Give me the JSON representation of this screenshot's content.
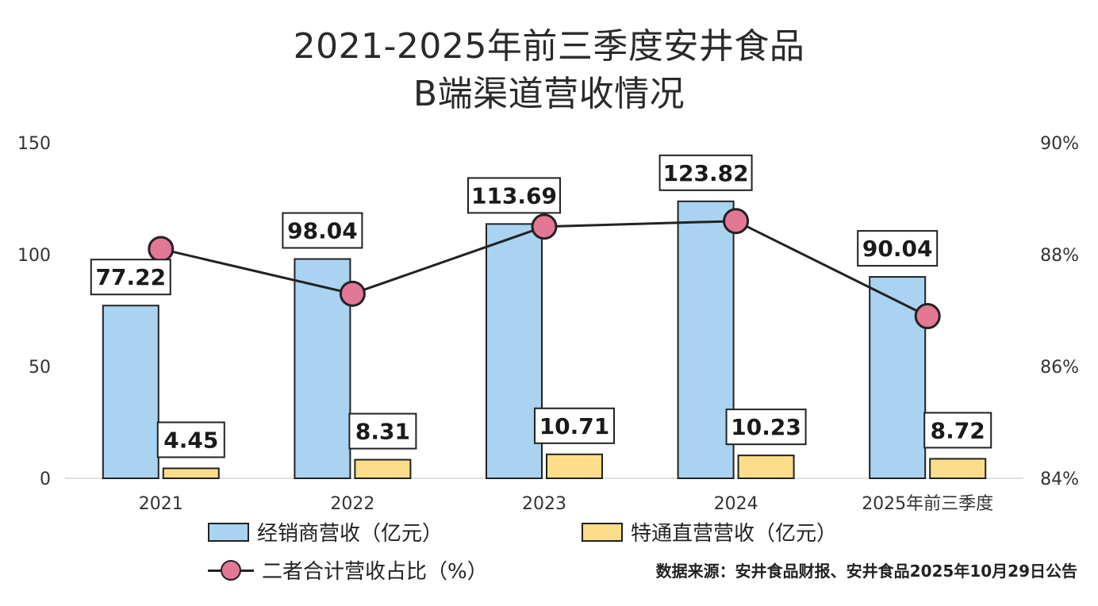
{
  "chart_data": {
    "type": "bar",
    "title_lines": [
      "2021-2025年前三季度安井食品",
      "B端渠道营收情况"
    ],
    "categories": [
      "2021",
      "2022",
      "2023",
      "2024",
      "2025年前三季度"
    ],
    "series": [
      {
        "name": "经销商营收（亿元）",
        "type": "bar",
        "axis": "left",
        "color": "#a9d3f0",
        "values": [
          77.22,
          98.04,
          113.69,
          123.82,
          90.04
        ]
      },
      {
        "name": "特通直营营收（亿元）",
        "type": "bar",
        "axis": "left",
        "color": "#fbdd8a",
        "values": [
          4.45,
          8.31,
          10.71,
          10.23,
          8.72
        ]
      },
      {
        "name": "二者合计营收占比（%）",
        "type": "line",
        "axis": "right",
        "color": "#e37796",
        "values": [
          88.1,
          87.3,
          88.5,
          88.6,
          86.9
        ]
      }
    ],
    "y_left": {
      "min": 0,
      "max": 150,
      "ticks": [
        "0",
        "50",
        "100",
        "150"
      ]
    },
    "y_right": {
      "min": 84,
      "max": 90,
      "ticks": [
        "84%",
        "86%",
        "88%",
        "90%"
      ]
    },
    "grid": false,
    "legend_position": "bottom"
  },
  "source": "数据来源：安井食品财报、安井食品2025年10月29日公告"
}
